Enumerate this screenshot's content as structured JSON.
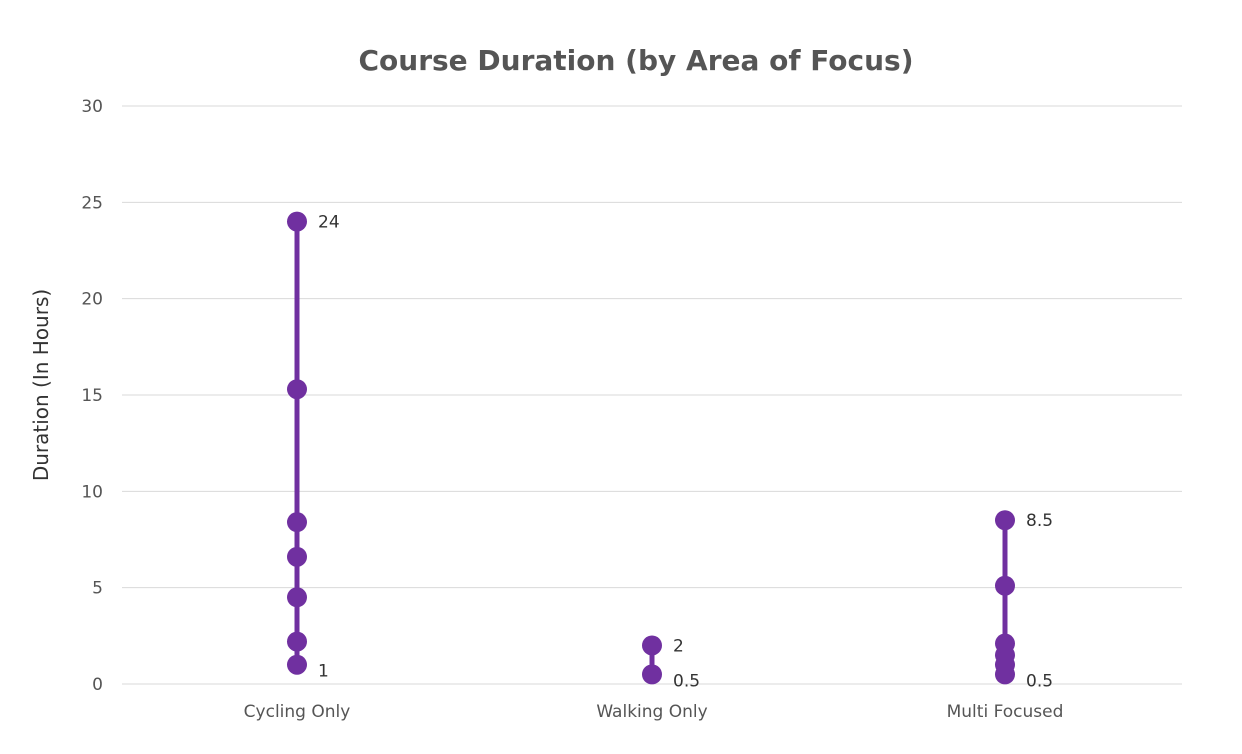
{
  "chart_data": {
    "type": "scatter",
    "title": "Course Duration (by Area of Focus)",
    "xlabel": "",
    "ylabel": "Duration (In Hours)",
    "ylim": [
      0,
      30
    ],
    "yticks": [
      0,
      5,
      10,
      15,
      20,
      25,
      30
    ],
    "grid": true,
    "legend": "none",
    "color": "#7030a0",
    "categories": [
      "Cycling Only",
      "Walking Only",
      "Multi Focused"
    ],
    "series": [
      {
        "category": "Cycling Only",
        "values": [
          1,
          2.2,
          4.5,
          6.6,
          8.4,
          15.3,
          24
        ],
        "max_label": "24",
        "min_label": "1"
      },
      {
        "category": "Walking Only",
        "values": [
          0.5,
          2
        ],
        "max_label": "2",
        "min_label": "0.5"
      },
      {
        "category": "Multi Focused",
        "values": [
          0.5,
          1,
          1.5,
          2.1,
          5.1,
          8.5
        ],
        "max_label": "8.5",
        "min_label": "0.5"
      }
    ]
  }
}
